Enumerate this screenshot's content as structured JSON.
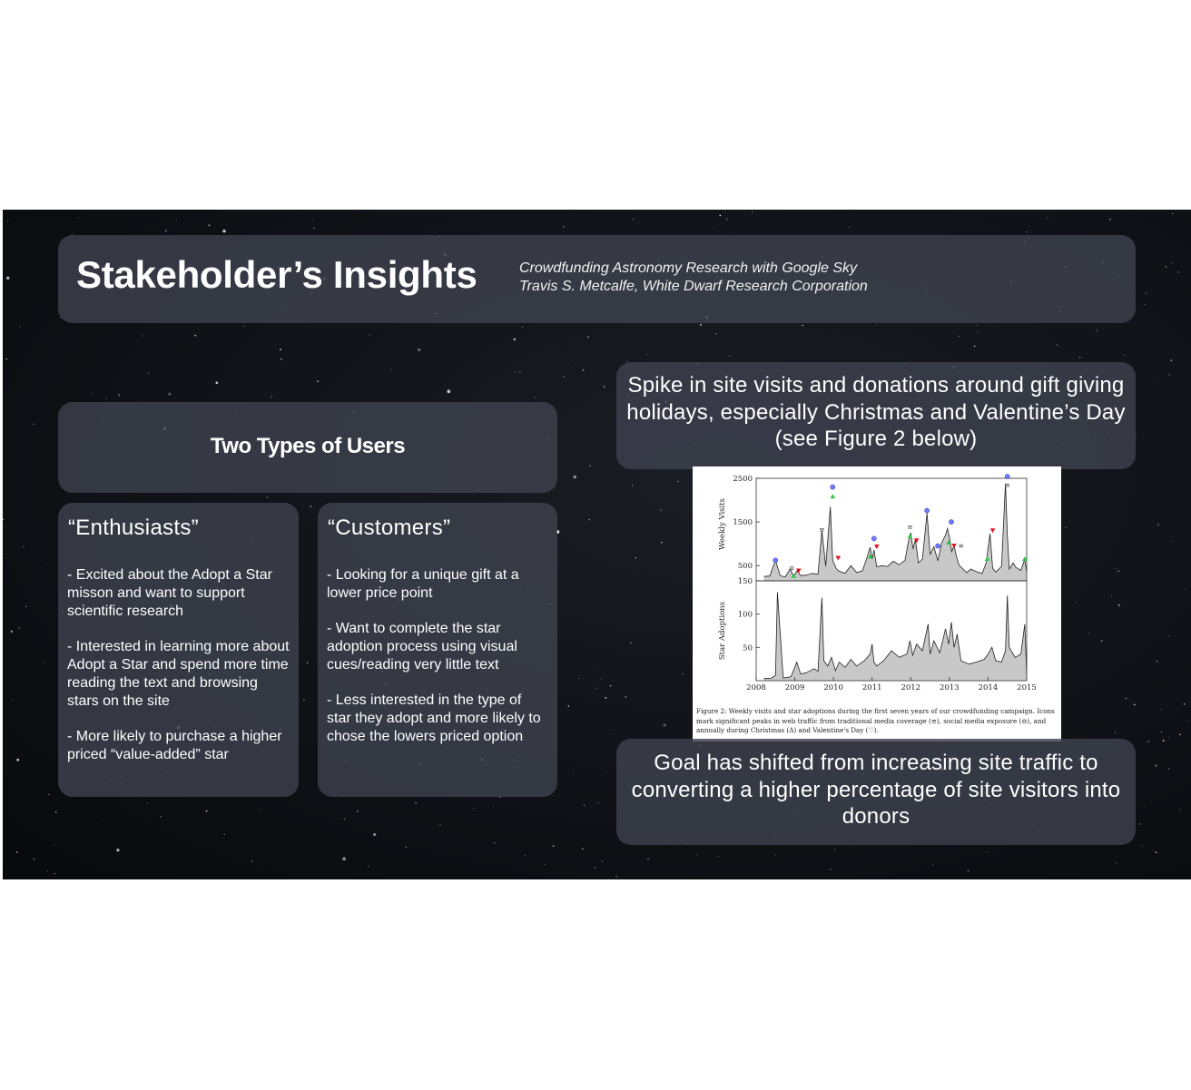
{
  "title": "Stakeholder’s Insights",
  "subtitle": {
    "line1": "Crowdfunding Astronomy Research with Google Sky",
    "line2": "Travis S. Metcalfe, White Dwarf Research Corporation"
  },
  "users": {
    "heading": "Two Types of Users",
    "enthusiasts": {
      "title": "“Enthusiasts”",
      "points": [
        "- Excited about the Adopt a Star misson and want to support scientific research",
        "- Interested in learning more about Adopt a Star and spend more time reading the text and browsing stars on the site",
        "- More likely to purchase a higher priced “value-added” star"
      ]
    },
    "customers": {
      "title": "“Customers”",
      "points": [
        "- Looking for a unique gift at a lower price point",
        "- Want to complete the star adoption process using visual cues/reading very little text",
        "- Less interested in the type of star they adopt and more likely to chose the lowers priced option"
      ]
    }
  },
  "spike_text": "Spike in site visits and donations around gift giving holidays, especially Christmas and Valentine’s Day (see Figure 2 below)",
  "goal_text": "Goal has shifted from increasing site traffic to converting a higher percentage of site visitors into donors",
  "figure": {
    "caption": "Figure 2: Weekly visits and star adoptions during the first seven years of our crowdfunding campaign. Icons mark significant peaks in web traffic from traditional media coverage (≡), social media exposure (⊖), and annually during Christmas (Δ) and Valentine's Day (♡)."
  },
  "colors": {
    "media_marker": "#555555",
    "social_marker": "#6f7bff",
    "christmas_marker": "#2ec84a",
    "valentine_marker": "#e0141e",
    "fill": "#c8c8c8"
  },
  "chart_data": [
    {
      "type": "area",
      "ylabel": "Weekly Visits",
      "ylim": [
        150,
        2500
      ],
      "yticks": [
        500,
        1500,
        2500
      ],
      "xlim": [
        2008,
        2015
      ],
      "x": [
        2008.2,
        2008.35,
        2008.5,
        2008.62,
        2008.75,
        2008.88,
        2008.97,
        2009.06,
        2009.15,
        2009.3,
        2009.45,
        2009.6,
        2009.7,
        2009.8,
        2009.92,
        2009.98,
        2010.08,
        2010.15,
        2010.3,
        2010.45,
        2010.6,
        2010.75,
        2010.88,
        2010.95,
        2011.0,
        2011.05,
        2011.12,
        2011.25,
        2011.4,
        2011.55,
        2011.7,
        2011.85,
        2011.95,
        2012.0,
        2012.06,
        2012.12,
        2012.2,
        2012.3,
        2012.42,
        2012.5,
        2012.6,
        2012.7,
        2012.8,
        2012.9,
        2012.95,
        2013.0,
        2013.06,
        2013.12,
        2013.18,
        2013.25,
        2013.35,
        2013.45,
        2013.55,
        2013.7,
        2013.85,
        2013.95,
        2014.05,
        2014.12,
        2014.2,
        2014.35,
        2014.45,
        2014.5,
        2014.55,
        2014.65,
        2014.72,
        2014.85,
        2014.95,
        2015.0
      ],
      "values": [
        250,
        260,
        620,
        270,
        240,
        420,
        250,
        380,
        270,
        280,
        320,
        300,
        1300,
        480,
        1850,
        620,
        420,
        370,
        320,
        500,
        340,
        380,
        720,
        920,
        650,
        860,
        470,
        500,
        480,
        600,
        520,
        620,
        1100,
        1250,
        880,
        1100,
        560,
        650,
        1700,
        760,
        930,
        610,
        1020,
        1200,
        1350,
        1150,
        820,
        960,
        720,
        510,
        420,
        340,
        420,
        360,
        320,
        560,
        1230,
        440,
        350,
        480,
        2380,
        1200,
        420,
        560,
        460,
        390,
        650,
        360
      ],
      "markers": [
        {
          "kind": "social",
          "x": 2008.5,
          "y": 620
        },
        {
          "kind": "media",
          "x": 2008.92,
          "y": 440
        },
        {
          "kind": "christmas",
          "x": 2008.97,
          "y": 260
        },
        {
          "kind": "valentine",
          "x": 2009.1,
          "y": 390
        },
        {
          "kind": "media",
          "x": 2009.7,
          "y": 1320
        },
        {
          "kind": "social",
          "x": 2009.98,
          "y": 2300
        },
        {
          "kind": "christmas",
          "x": 2009.98,
          "y": 2080
        },
        {
          "kind": "valentine",
          "x": 2010.12,
          "y": 680
        },
        {
          "kind": "social",
          "x": 2011.05,
          "y": 1120
        },
        {
          "kind": "christmas",
          "x": 2010.95,
          "y": 700
        },
        {
          "kind": "valentine",
          "x": 2011.12,
          "y": 940
        },
        {
          "kind": "media",
          "x": 2011.98,
          "y": 1380
        },
        {
          "kind": "christmas",
          "x": 2011.98,
          "y": 1170
        },
        {
          "kind": "valentine",
          "x": 2012.15,
          "y": 1080
        },
        {
          "kind": "social",
          "x": 2012.42,
          "y": 1760
        },
        {
          "kind": "social",
          "x": 2012.7,
          "y": 950
        },
        {
          "kind": "christmas",
          "x": 2012.98,
          "y": 1020
        },
        {
          "kind": "social",
          "x": 2013.05,
          "y": 1500
        },
        {
          "kind": "valentine",
          "x": 2013.12,
          "y": 960
        },
        {
          "kind": "media",
          "x": 2013.3,
          "y": 950
        },
        {
          "kind": "christmas",
          "x": 2013.98,
          "y": 650
        },
        {
          "kind": "valentine",
          "x": 2014.12,
          "y": 1310
        },
        {
          "kind": "social",
          "x": 2014.5,
          "y": 2540
        },
        {
          "kind": "media",
          "x": 2014.5,
          "y": 2340
        },
        {
          "kind": "christmas",
          "x": 2014.95,
          "y": 650
        }
      ]
    },
    {
      "type": "area",
      "ylabel": "Star Adoptions",
      "ylim": [
        0,
        150
      ],
      "yticks": [
        50,
        100,
        150
      ],
      "xlabel": "",
      "xticks": [
        2008,
        2009,
        2010,
        2011,
        2012,
        2013,
        2014,
        2015
      ],
      "xlim": [
        2008,
        2015
      ],
      "x": [
        2008.2,
        2008.4,
        2008.5,
        2008.55,
        2008.7,
        2008.9,
        2009.0,
        2009.05,
        2009.15,
        2009.3,
        2009.5,
        2009.6,
        2009.7,
        2009.75,
        2009.85,
        2009.95,
        2010.05,
        2010.15,
        2010.3,
        2010.45,
        2010.6,
        2010.8,
        2010.95,
        2011.0,
        2011.05,
        2011.12,
        2011.3,
        2011.5,
        2011.7,
        2011.9,
        2011.98,
        2012.05,
        2012.15,
        2012.3,
        2012.45,
        2012.5,
        2012.6,
        2012.75,
        2012.9,
        2012.98,
        2013.05,
        2013.12,
        2013.2,
        2013.3,
        2013.5,
        2013.7,
        2013.9,
        2014.0,
        2014.1,
        2014.2,
        2014.35,
        2014.45,
        2014.5,
        2014.55,
        2014.7,
        2014.85,
        2014.95,
        2015.0
      ],
      "values": [
        3,
        4,
        8,
        133,
        4,
        6,
        20,
        28,
        10,
        12,
        18,
        14,
        125,
        30,
        22,
        35,
        15,
        28,
        20,
        32,
        22,
        30,
        40,
        55,
        28,
        22,
        30,
        45,
        35,
        40,
        60,
        38,
        55,
        45,
        85,
        40,
        60,
        42,
        78,
        55,
        88,
        50,
        70,
        30,
        25,
        28,
        32,
        40,
        50,
        30,
        28,
        45,
        128,
        50,
        35,
        40,
        85,
        10
      ]
    }
  ]
}
